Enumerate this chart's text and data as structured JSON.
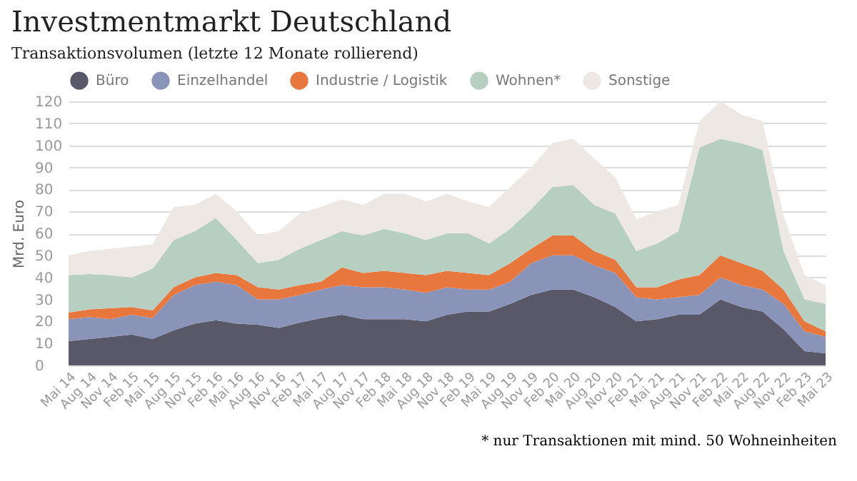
{
  "chart_data": {
    "type": "area",
    "stacked": true,
    "title": "Investmentmarkt Deutschland",
    "subtitle": "Transaktionsvolumen (letzte 12 Monate rollierend)",
    "ylabel": "Mrd. Euro",
    "categories": [
      "Mai 14",
      "Aug 14",
      "Nov 14",
      "Feb 15",
      "Mai 15",
      "Aug 15",
      "Nov 15",
      "Feb 16",
      "Mai 16",
      "Aug 16",
      "Nov 16",
      "Feb 17",
      "Mai 17",
      "Aug 17",
      "Nov 17",
      "Feb 18",
      "Mai 18",
      "Aug 18",
      "Nov 18",
      "Feb 19",
      "Mai 19",
      "Aug 19",
      "Nov 19",
      "Feb 20",
      "Mai 20",
      "Aug 20",
      "Nov 20",
      "Feb 21",
      "Mai 21",
      "Aug 21",
      "Nov 21",
      "Feb 22",
      "Mai 22",
      "Aug 22",
      "Nov 22",
      "Feb 23",
      "Mai 23"
    ],
    "series": [
      {
        "name": "Büro",
        "color": "#585868",
        "values": [
          11,
          12,
          13,
          14,
          12,
          16,
          19,
          20.5,
          19,
          18.5,
          17,
          19.5,
          21.5,
          23,
          21,
          21,
          21,
          20,
          23,
          24.5,
          24.5,
          28,
          32,
          34.5,
          34.5,
          31,
          26.5,
          20,
          21,
          23,
          23,
          30,
          26.5,
          24.5,
          16.5,
          6.5,
          5.5
        ]
      },
      {
        "name": "Einzelhandel",
        "color": "#8a93b8",
        "values": [
          10,
          10,
          8,
          9,
          9.5,
          16,
          17.5,
          17.5,
          17.5,
          11.5,
          13,
          12.5,
          13,
          13.5,
          14.5,
          14.5,
          13.5,
          13,
          12.5,
          10,
          10,
          10,
          14.5,
          15.5,
          15.5,
          14.5,
          15.5,
          11,
          9,
          8,
          9,
          10,
          10,
          10,
          11.5,
          9,
          7.5
        ]
      },
      {
        "name": "Industrie / Logistik",
        "color": "#e8773e",
        "values": [
          3,
          3.5,
          5,
          3.5,
          3.5,
          3.5,
          3.5,
          4,
          4.5,
          5.5,
          4.5,
          4.5,
          3.5,
          8,
          6.5,
          7.5,
          7.5,
          8,
          7.5,
          7.5,
          6.5,
          8.5,
          6.5,
          9,
          9,
          6.5,
          6,
          4.5,
          5.5,
          8,
          9,
          10,
          10,
          8.5,
          6.5,
          4.5,
          2.5
        ]
      },
      {
        "name": "Wohnen*",
        "color": "#b7cfc1",
        "values": [
          17,
          16,
          15,
          13.5,
          19,
          21.5,
          21,
          25,
          16,
          11,
          13.5,
          16.5,
          19,
          16.5,
          17,
          19,
          18,
          16,
          17,
          18,
          14.5,
          15.5,
          18,
          22,
          23,
          21,
          21,
          16.5,
          20,
          22,
          58,
          53,
          54.5,
          55,
          17.5,
          10,
          12.5
        ]
      },
      {
        "name": "Sonstige",
        "color": "#ede8e3",
        "values": [
          9,
          10.5,
          12,
          14,
          11,
          15,
          12,
          11,
          13,
          12.5,
          13,
          16,
          15,
          14.5,
          14,
          16,
          18,
          17.5,
          18,
          14.5,
          16.5,
          19,
          19,
          20,
          21,
          21,
          16.5,
          14.5,
          14.5,
          12,
          12,
          17,
          13,
          13,
          16,
          11,
          8.5
        ]
      }
    ],
    "ylim": [
      0,
      120
    ],
    "yticks": [
      0,
      10,
      20,
      30,
      40,
      50,
      60,
      70,
      80,
      90,
      100,
      110,
      120
    ],
    "grid": "y",
    "legend": "top",
    "marker": "none",
    "annotations": [
      "* nur Transaktionen mit mind. 50 Wohneinheiten"
    ]
  }
}
